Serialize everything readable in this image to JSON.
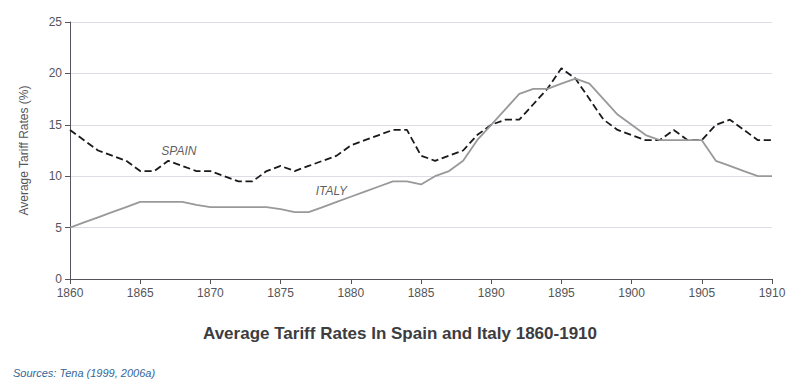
{
  "chart_data": {
    "type": "line",
    "title": "Average Tariff Rates In Spain and Italy 1860-1910",
    "source": "Sources: Tena (1999, 2006a)",
    "ylabel": "Average Tariff Rates (%)",
    "xlim": [
      1860,
      1910
    ],
    "ylim": [
      0,
      25
    ],
    "xticks": [
      1860,
      1865,
      1870,
      1875,
      1880,
      1885,
      1890,
      1895,
      1900,
      1905,
      1910
    ],
    "yticks": [
      0,
      5,
      10,
      15,
      20,
      25
    ],
    "grid": true,
    "x": [
      1860,
      1861,
      1862,
      1863,
      1864,
      1865,
      1866,
      1867,
      1868,
      1869,
      1870,
      1871,
      1872,
      1873,
      1874,
      1875,
      1876,
      1877,
      1878,
      1879,
      1880,
      1881,
      1882,
      1883,
      1884,
      1885,
      1886,
      1887,
      1888,
      1889,
      1890,
      1891,
      1892,
      1893,
      1894,
      1895,
      1896,
      1897,
      1898,
      1899,
      1900,
      1901,
      1902,
      1903,
      1904,
      1905,
      1906,
      1907,
      1908,
      1909,
      1910
    ],
    "series": [
      {
        "color": "#1a1a1a",
        "line_style": "dashed",
        "values": [
          14.5,
          13.5,
          12.5,
          12.0,
          11.5,
          10.5,
          10.5,
          11.5,
          11.0,
          10.5,
          10.5,
          10.0,
          9.5,
          9.5,
          10.5,
          11.0,
          10.5,
          11.0,
          11.5,
          12.0,
          13.0,
          13.5,
          14.0,
          14.5,
          14.5,
          12.0,
          11.5,
          12.0,
          12.5,
          14.0,
          15.0,
          15.5,
          15.5,
          17.0,
          18.5,
          20.5,
          19.5,
          17.5,
          15.5,
          14.5,
          14.0,
          13.5,
          13.5,
          14.5,
          13.5,
          13.5,
          15.0,
          15.5,
          14.5,
          13.5,
          13.5
        ]
      },
      {
        "color": "#999999",
        "line_style": "solid",
        "values": [
          5.0,
          5.5,
          6.0,
          6.5,
          7.0,
          7.5,
          7.5,
          7.5,
          7.5,
          7.2,
          7.0,
          7.0,
          7.0,
          7.0,
          7.0,
          6.8,
          6.5,
          6.5,
          7.0,
          7.5,
          8.0,
          8.5,
          9.0,
          9.5,
          9.5,
          9.2,
          10.0,
          10.5,
          11.5,
          13.5,
          15.0,
          16.5,
          18.0,
          18.5,
          18.5,
          19.0,
          19.5,
          19.0,
          17.5,
          16.0,
          15.0,
          14.0,
          13.5,
          13.5,
          13.5,
          13.5,
          11.5,
          11.0,
          10.5,
          10.0,
          10.0
        ]
      }
    ],
    "annotations": [
      {
        "text": "SPAIN",
        "x": 1866.5,
        "y": 12.5
      },
      {
        "text": "ITALY",
        "x": 1877.5,
        "y": 8.6
      }
    ]
  }
}
